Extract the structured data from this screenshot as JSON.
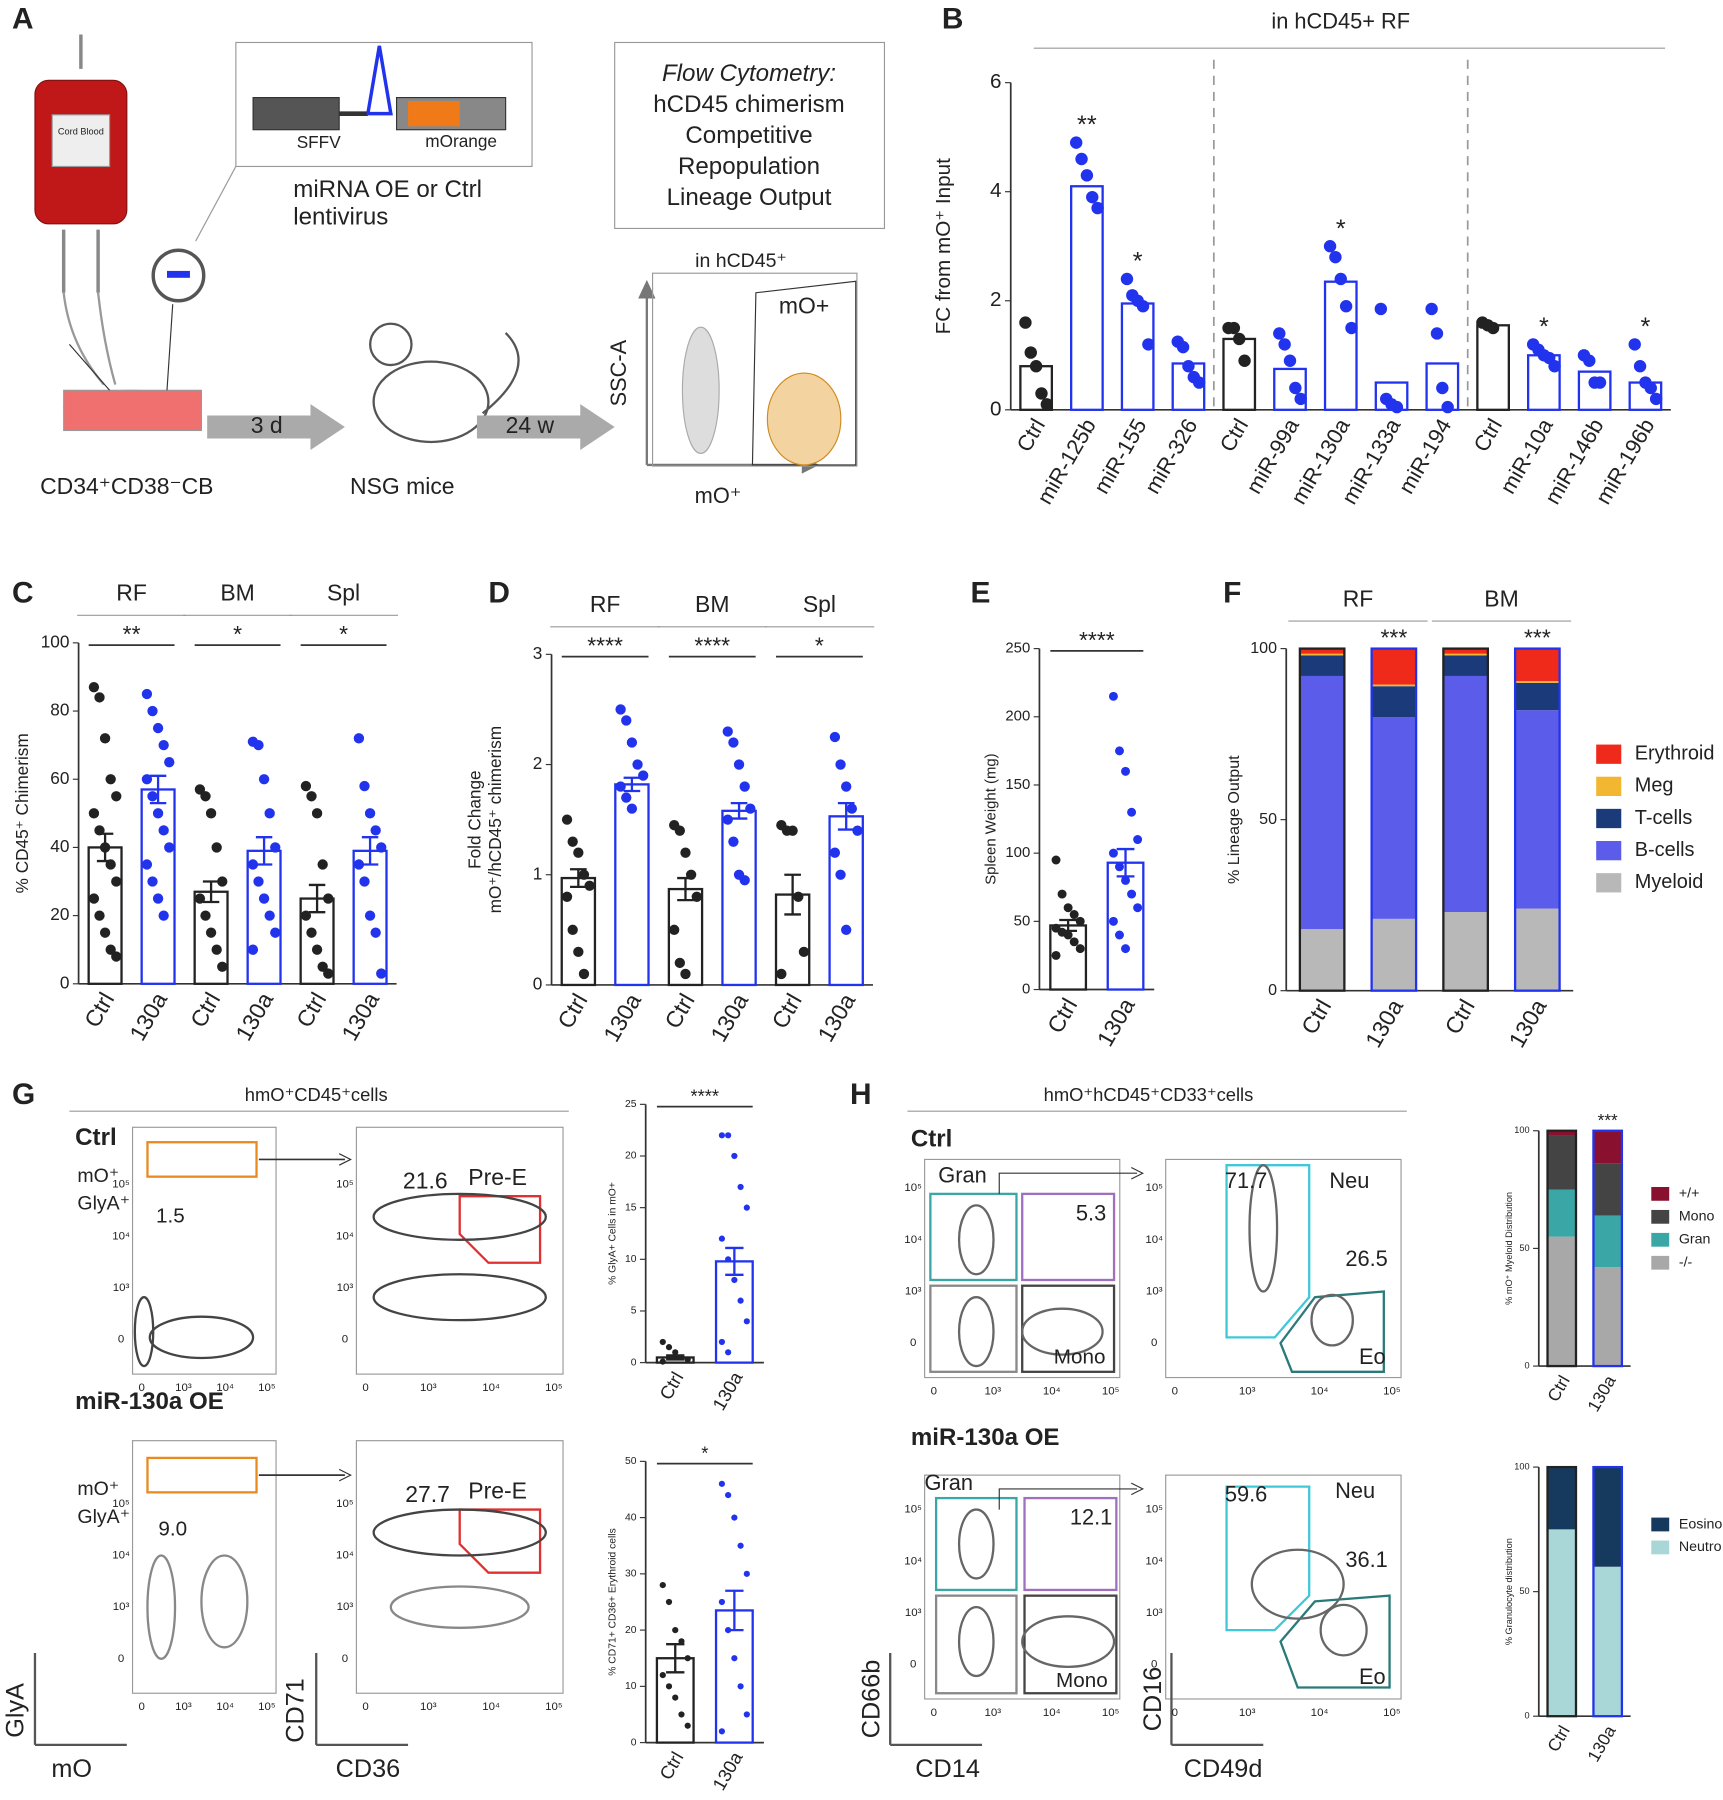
{
  "panels": [
    "A",
    "B",
    "C",
    "D",
    "E",
    "F",
    "G",
    "H"
  ],
  "schematic": {
    "bag": "Cord Blood",
    "vector_promoter": "SFFV",
    "vector_reporter": "mOrange",
    "virus_lines": [
      "miRNA OE or Ctrl",
      "lentivirus"
    ],
    "dish": "CD34⁺CD38⁻CB",
    "step1": "3 d",
    "mice": "NSG mice",
    "step2": "24 w",
    "readout_title": "Flow Cytometry:",
    "readout_lines": [
      "hCD45 chimerism",
      "Competitive",
      "Repopulation",
      "Lineage Output"
    ],
    "gate_title": "in hCD45⁺",
    "gate_y": "SSC-A",
    "gate_x": "mO⁺",
    "gate_label": "mO+"
  },
  "flow": {
    "g_title": "hmO⁺CD45⁺cells",
    "h_title": "hmO⁺hCD45⁺CD33⁺cells",
    "ctrl": "Ctrl",
    "oe": "miR-130a OE",
    "g_gate": [
      "mO⁺",
      "GlyA⁺"
    ],
    "g_ctrl_freq": "1.5",
    "g_ctrl_pree": "21.6",
    "g_oe_freq": "9.0",
    "g_oe_pree": "27.7",
    "pree": "Pre-E",
    "g_axes": [
      "GlyA",
      "mO",
      "CD71",
      "CD36"
    ],
    "h_gran": "Gran",
    "h_mono": "Mono",
    "h_neu": "Neu",
    "h_eo": "Eo",
    "h_ctrl_dp": "5.3",
    "h_ctrl_neu": "71.7",
    "h_ctrl_eo": "26.5",
    "h_oe_dp": "12.1",
    "h_oe_neu": "59.6",
    "h_oe_eo": "36.1",
    "h_axes": [
      "CD66b",
      "CD14",
      "CD16",
      "CD49d"
    ],
    "axis_ticks": [
      "0",
      "10³",
      "10⁴",
      "10⁵"
    ]
  },
  "chart_data": [
    {
      "type": "bar",
      "title": "in hCD45+ RF",
      "ylabel": "FC from mO⁺ Input",
      "ylim": [
        0,
        6
      ],
      "yticks": [
        0,
        2,
        4,
        6
      ],
      "categories": [
        "Ctrl",
        "miR-125b",
        "miR-155",
        "miR-326",
        "Ctrl",
        "miR-99a",
        "miR-130a",
        "miR-133a",
        "miR-194",
        "Ctrl",
        "miR-10a",
        "miR-146b",
        "miR-196b"
      ],
      "values": [
        0.8,
        4.1,
        1.95,
        0.85,
        1.3,
        0.75,
        2.35,
        0.5,
        0.85,
        1.55,
        1.0,
        0.7,
        0.5
      ],
      "colors": [
        "#222222",
        "#2233ee",
        "#2233ee",
        "#2233ee",
        "#222222",
        "#2233ee",
        "#2233ee",
        "#2233ee",
        "#2233ee",
        "#222222",
        "#2233ee",
        "#2233ee",
        "#2233ee"
      ],
      "points": [
        [
          1.6,
          1.05,
          0.8,
          0.3,
          0.1
        ],
        [
          4.9,
          4.6,
          4.3,
          3.9,
          3.7
        ],
        [
          2.4,
          2.1,
          2.0,
          1.9,
          1.2
        ],
        [
          1.25,
          1.15,
          0.8,
          0.6,
          0.5
        ],
        [
          1.5,
          1.5,
          1.3,
          0.9
        ],
        [
          1.4,
          1.2,
          0.9,
          0.4,
          0.2
        ],
        [
          3.0,
          2.8,
          2.4,
          1.9,
          1.5
        ],
        [
          1.85,
          0.2,
          0.1,
          0.05
        ],
        [
          1.85,
          1.4,
          0.4,
          0.05
        ],
        [
          1.6,
          1.55,
          1.5
        ],
        [
          1.2,
          1.1,
          1.0,
          0.95,
          0.8
        ],
        [
          1.0,
          0.9,
          0.5,
          0.5
        ],
        [
          1.2,
          0.8,
          0.5,
          0.4,
          0.2
        ]
      ],
      "stars": [
        null,
        "**",
        "*",
        null,
        null,
        null,
        "*",
        null,
        null,
        null,
        "*",
        null,
        "*"
      ],
      "star_color": "#e02020"
    },
    {
      "type": "bar",
      "ylabel": "% CD45⁺ Chimerism",
      "ylim": [
        0,
        100
      ],
      "yticks": [
        0,
        20,
        40,
        60,
        80,
        100
      ],
      "categories": [
        "Ctrl",
        "130a",
        "Ctrl",
        "130a",
        "Ctrl",
        "130a"
      ],
      "values": [
        40,
        57,
        27,
        39,
        25,
        39
      ],
      "errors": [
        4,
        4,
        3,
        4,
        4,
        4
      ],
      "colors": [
        "#222222",
        "#2233ee",
        "#222222",
        "#2233ee",
        "#222222",
        "#2233ee"
      ],
      "points": [
        [
          87,
          84,
          72,
          60,
          55,
          50,
          45,
          40,
          35,
          30,
          25,
          20,
          15,
          10,
          8
        ],
        [
          85,
          80,
          75,
          70,
          65,
          60,
          55,
          50,
          45,
          40,
          35,
          30,
          25,
          20
        ],
        [
          57,
          55,
          50,
          40,
          30,
          25,
          20,
          15,
          10,
          5
        ],
        [
          71,
          70,
          60,
          50,
          40,
          35,
          30,
          25,
          20,
          15,
          10
        ],
        [
          58,
          55,
          50,
          35,
          25,
          20,
          15,
          10,
          5,
          3
        ],
        [
          72,
          58,
          50,
          45,
          40,
          35,
          30,
          20,
          15,
          3
        ]
      ],
      "groups": [
        {
          "label": "RF",
          "significance": "**"
        },
        {
          "label": "BM",
          "significance": "*"
        },
        {
          "label": "Spl",
          "significance": "*"
        }
      ]
    },
    {
      "type": "bar",
      "ylabel": [
        "Fold Change",
        "mO⁺/hCD45⁺ chimerism"
      ],
      "ylim": [
        0,
        3
      ],
      "yticks": [
        0,
        1,
        2,
        3
      ],
      "categories": [
        "Ctrl",
        "130a",
        "Ctrl",
        "130a",
        "Ctrl",
        "130a"
      ],
      "values": [
        0.97,
        1.82,
        0.87,
        1.58,
        0.82,
        1.53
      ],
      "errors": [
        0.08,
        0.06,
        0.1,
        0.07,
        0.18,
        0.12
      ],
      "colors": [
        "#222222",
        "#2233ee",
        "#222222",
        "#2233ee",
        "#222222",
        "#2233ee"
      ],
      "points": [
        [
          1.5,
          1.3,
          1.2,
          1.0,
          0.9,
          0.8,
          0.5,
          0.3,
          0.1
        ],
        [
          2.5,
          2.4,
          2.2,
          2.0,
          1.9,
          1.8,
          1.7,
          1.6
        ],
        [
          1.45,
          1.4,
          1.2,
          1.0,
          0.8,
          0.5,
          0.2,
          0.1
        ],
        [
          2.3,
          2.2,
          2.0,
          1.8,
          1.6,
          1.5,
          1.3,
          1.0,
          0.95
        ],
        [
          1.45,
          1.4,
          1.4,
          0.8,
          0.3,
          0.1
        ],
        [
          2.25,
          2.0,
          1.8,
          1.6,
          1.4,
          1.2,
          1.0,
          0.5
        ]
      ],
      "groups": [
        {
          "label": "RF",
          "significance": "****"
        },
        {
          "label": "BM",
          "significance": "****"
        },
        {
          "label": "Spl",
          "significance": "*"
        }
      ]
    },
    {
      "type": "bar",
      "ylabel": "Spleen Weight (mg)",
      "ylim": [
        0,
        250
      ],
      "yticks": [
        0,
        50,
        100,
        150,
        200,
        250
      ],
      "categories": [
        "Ctrl",
        "130a"
      ],
      "values": [
        47,
        93
      ],
      "errors": [
        4,
        10
      ],
      "colors": [
        "#222222",
        "#2233ee"
      ],
      "points": [
        [
          95,
          70,
          60,
          55,
          50,
          45,
          42,
          40,
          35,
          30,
          25
        ],
        [
          215,
          175,
          160,
          130,
          110,
          100,
          90,
          80,
          70,
          60,
          50,
          40,
          30
        ]
      ],
      "groups": [
        {
          "significance": "****"
        }
      ]
    },
    {
      "type": "stacked_bar",
      "ylabel": "% Lineage Output",
      "ylim": [
        0,
        100
      ],
      "yticks": [
        0,
        50,
        100
      ],
      "categories": [
        "Ctrl",
        "130a",
        "Ctrl",
        "130a"
      ],
      "series": [
        {
          "name": "Myeloid",
          "color": "#b8b8b8",
          "values": [
            18,
            21,
            23,
            24
          ]
        },
        {
          "name": "B-cells",
          "color": "#5b5cea",
          "values": [
            74,
            59,
            69,
            58
          ]
        },
        {
          "name": "T-cells",
          "color": "#1a3a7a",
          "values": [
            6,
            9,
            6,
            8
          ]
        },
        {
          "name": "Meg",
          "color": "#f2b630",
          "values": [
            0.5,
            0.5,
            0.5,
            0.5
          ]
        },
        {
          "name": "Erythroid",
          "color": "#f02a1a",
          "values": [
            1.5,
            10.5,
            1.5,
            9.5
          ]
        }
      ],
      "colors": [
        "#222222",
        "#2233ee",
        "#222222",
        "#2233ee"
      ],
      "groups": [
        {
          "label": "RF",
          "significance": "***"
        },
        {
          "label": "BM",
          "significance": "***"
        }
      ]
    },
    {
      "type": "bar",
      "ylabel": "% GlyA+ Cells in mO+",
      "ylim": [
        0,
        25
      ],
      "yticks": [
        0,
        5,
        10,
        15,
        20,
        25
      ],
      "categories": [
        "Ctrl",
        "130a"
      ],
      "values": [
        0.5,
        9.8
      ],
      "errors": [
        0.2,
        1.3
      ],
      "colors": [
        "#222222",
        "#2233ee"
      ],
      "points": [
        [
          2,
          1.5,
          1,
          0.5,
          0.3,
          0.1
        ],
        [
          22,
          22,
          20,
          17,
          15,
          12,
          10,
          8,
          6,
          4,
          2,
          1
        ]
      ],
      "groups": [
        {
          "significance": "****"
        }
      ]
    },
    {
      "type": "bar",
      "ylabel": "% CD71+ CD36+ Erythroid cells",
      "ylim": [
        0,
        50
      ],
      "yticks": [
        0,
        10,
        20,
        30,
        40,
        50
      ],
      "categories": [
        "Ctrl",
        "130a"
      ],
      "values": [
        15,
        23.5
      ],
      "errors": [
        2.5,
        3.5
      ],
      "colors": [
        "#222222",
        "#2233ee"
      ],
      "points": [
        [
          28,
          25,
          20,
          18,
          15,
          12,
          10,
          8,
          5,
          3
        ],
        [
          46,
          44,
          40,
          35,
          30,
          25,
          20,
          15,
          10,
          5,
          2
        ]
      ],
      "groups": [
        {
          "significance": "*"
        }
      ]
    },
    {
      "type": "stacked_bar",
      "ylabel": "% mO⁺ Myeloid Distribution",
      "ylim": [
        0,
        100
      ],
      "yticks": [
        0,
        50,
        100
      ],
      "categories": [
        "Ctrl",
        "130a"
      ],
      "series": [
        {
          "name": "-/-",
          "color": "#a8a8a8",
          "values": [
            55,
            42
          ]
        },
        {
          "name": "Gran",
          "color": "#3aa6a6",
          "values": [
            20,
            22
          ]
        },
        {
          "name": "Mono",
          "color": "#444444",
          "values": [
            23,
            22
          ]
        },
        {
          "name": "+/+",
          "color": "#8a1030",
          "values": [
            2,
            14
          ]
        }
      ],
      "colors": [
        "#222222",
        "#2233ee"
      ],
      "groups": [
        {
          "significance": "***"
        }
      ]
    },
    {
      "type": "stacked_bar",
      "ylabel": "% Granulocyte distribution",
      "ylim": [
        0,
        100
      ],
      "yticks": [
        0,
        50,
        100
      ],
      "categories": [
        "Ctrl",
        "130a"
      ],
      "series": [
        {
          "name": "Neutro",
          "color": "#a9d6d6",
          "values": [
            75,
            60
          ]
        },
        {
          "name": "Eosino",
          "color": "#163a5e",
          "values": [
            25,
            40
          ]
        }
      ],
      "colors": [
        "#222222",
        "#2233ee"
      ]
    }
  ]
}
